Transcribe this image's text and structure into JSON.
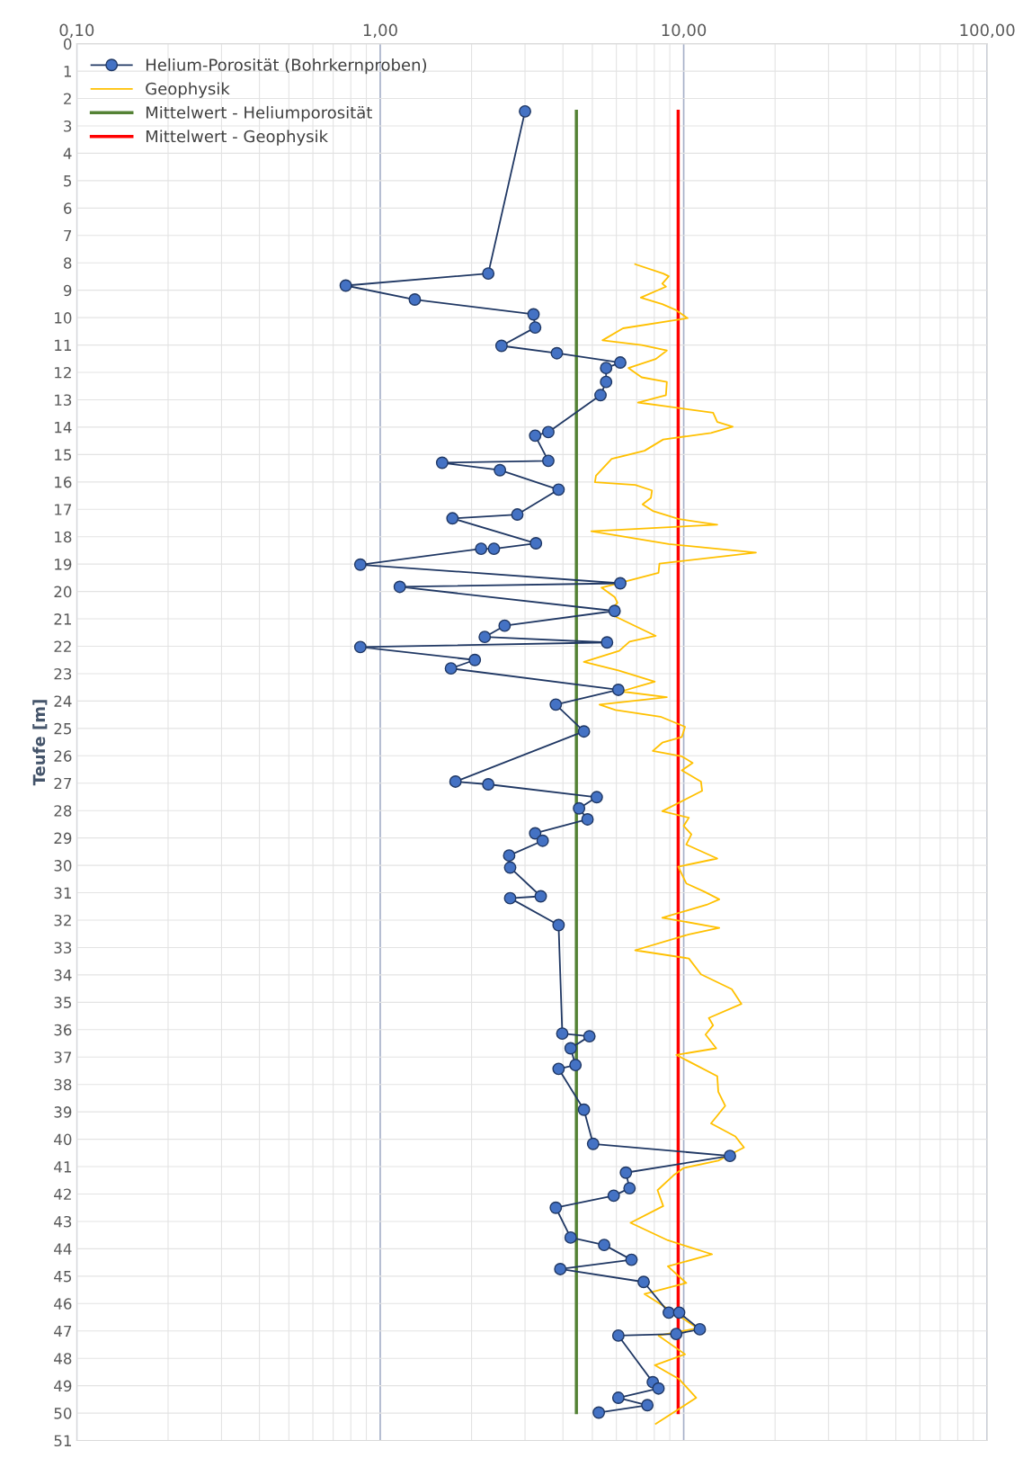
{
  "chart_data": {
    "type": "line",
    "ylabel": "Teufe [m]",
    "log": "x",
    "xlim": [
      0.1,
      100
    ],
    "ylim": [
      51,
      0
    ],
    "xticks": [
      {
        "value": 0.1,
        "label": "0,10"
      },
      {
        "value": 1,
        "label": "1,00"
      },
      {
        "value": 10,
        "label": "10,00"
      },
      {
        "value": 100,
        "label": "100,00"
      }
    ],
    "yticks": [
      0,
      1,
      2,
      3,
      4,
      5,
      6,
      7,
      8,
      9,
      10,
      11,
      12,
      13,
      14,
      15,
      16,
      17,
      18,
      19,
      20,
      21,
      22,
      23,
      24,
      25,
      26,
      27,
      28,
      29,
      30,
      31,
      32,
      33,
      34,
      35,
      36,
      37,
      38,
      39,
      40,
      41,
      42,
      43,
      44,
      45,
      46,
      47,
      48,
      49,
      50,
      51
    ],
    "grid": true,
    "legend": "top left",
    "series": [
      {
        "name": "Helium-Porosität (Bohrkernproben)",
        "color": "#203864",
        "marker": "circle",
        "x": [
          3.0,
          2.27,
          0.77,
          1.3,
          3.2,
          3.24,
          2.51,
          3.82,
          6.18,
          5.55,
          5.55,
          5.32,
          3.58,
          3.24,
          3.58,
          1.6,
          2.48,
          3.87,
          2.83,
          1.73,
          3.26,
          2.37,
          2.15,
          0.86,
          6.18,
          1.16,
          5.92,
          2.57,
          2.21,
          5.59,
          0.86,
          2.05,
          1.71,
          6.09,
          3.79,
          4.69,
          1.77,
          2.27,
          5.17,
          4.52,
          4.82,
          3.24,
          3.43,
          2.66,
          2.68,
          3.38,
          2.68,
          3.87,
          3.98,
          4.89,
          4.24,
          4.4,
          3.87,
          4.69,
          5.03,
          14.2,
          6.45,
          6.63,
          5.88,
          3.79,
          4.24,
          5.47,
          6.73,
          3.92,
          7.38,
          8.93,
          9.66,
          11.3,
          9.45,
          6.09,
          7.91,
          8.26,
          6.09,
          7.59,
          5.25
        ],
        "values": [
          2.47,
          8.39,
          8.83,
          9.34,
          9.88,
          10.36,
          11.03,
          11.3,
          11.64,
          11.84,
          12.35,
          12.83,
          14.18,
          14.31,
          15.23,
          15.3,
          15.57,
          16.28,
          17.19,
          17.33,
          18.24,
          18.44,
          18.44,
          19.02,
          19.7,
          19.83,
          20.71,
          21.25,
          21.66,
          21.86,
          22.03,
          22.5,
          22.81,
          23.59,
          24.13,
          25.11,
          26.94,
          27.04,
          27.51,
          27.92,
          28.32,
          28.83,
          29.1,
          29.64,
          30.08,
          31.13,
          31.2,
          32.18,
          36.14,
          36.24,
          36.68,
          37.29,
          37.43,
          38.92,
          40.17,
          40.61,
          41.22,
          41.79,
          42.06,
          42.5,
          43.59,
          43.86,
          44.4,
          44.74,
          45.21,
          46.33,
          46.33,
          46.94,
          47.11,
          47.17,
          48.87,
          49.1,
          49.44,
          49.71,
          49.98
        ]
      },
      {
        "name": "Geophysik",
        "color": "#ffc000",
        "x": [
          6.92,
          8.56,
          8.93,
          8.5,
          8.74,
          7.22,
          8.5,
          9.38,
          10.3,
          6.31,
          5.4,
          7.27,
          8.8,
          8.09,
          6.58,
          7.27,
          8.8,
          8.74,
          7.07,
          8.61,
          12.5,
          12.9,
          14.5,
          12.3,
          8.56,
          7.43,
          5.79,
          5.14,
          5.1,
          6.92,
          7.86,
          7.8,
          7.32,
          7.91,
          9.66,
          12.9,
          4.96,
          8.93,
          17.3,
          8.32,
          8.26,
          5.36,
          5.92,
          6.05,
          5.75,
          5.79,
          8.09,
          6.63,
          6.13,
          4.69,
          6.09,
          8.03,
          6.22,
          8.8,
          5.28,
          5.96,
          8.38,
          10.1,
          9.86,
          8.5,
          7.91,
          9.86,
          10.7,
          9.86,
          11.4,
          11.5,
          8.5,
          10.4,
          10.0,
          10.6,
          10.2,
          12.9,
          9.59,
          10.2,
          11.7,
          13.1,
          11.9,
          8.5,
          13.1,
          10.4,
          6.92,
          10.4,
          11.4,
          14.4,
          15.5,
          12.1,
          12.5,
          11.8,
          12.8,
          9.45,
          12.9,
          13.0,
          13.7,
          12.3,
          14.8,
          15.8,
          13.0,
          10.0,
          9.25,
          8.2,
          8.56,
          6.68,
          8.87,
          12.4,
          8.87,
          10.2,
          7.43,
          9.51,
          11.1,
          8.26,
          10.1,
          8.03,
          9.66,
          11.0,
          8.09
        ],
        "values": [
          8.05,
          8.39,
          8.49,
          8.76,
          8.87,
          9.27,
          9.51,
          9.71,
          10.02,
          10.39,
          10.83,
          11.0,
          11.2,
          11.51,
          11.84,
          12.18,
          12.35,
          12.83,
          13.1,
          13.23,
          13.47,
          13.81,
          13.98,
          14.21,
          14.45,
          14.86,
          15.16,
          15.77,
          16.01,
          16.11,
          16.31,
          16.58,
          16.82,
          17.06,
          17.36,
          17.56,
          17.8,
          18.27,
          18.58,
          18.98,
          19.32,
          19.86,
          20.2,
          20.41,
          20.68,
          20.85,
          21.62,
          21.83,
          22.17,
          22.57,
          22.88,
          23.29,
          23.65,
          23.86,
          24.13,
          24.33,
          24.57,
          24.94,
          25.31,
          25.52,
          25.82,
          26.02,
          26.26,
          26.53,
          26.94,
          27.28,
          28.02,
          28.26,
          28.56,
          28.87,
          29.24,
          29.75,
          30.05,
          30.66,
          30.96,
          31.24,
          31.44,
          31.91,
          32.28,
          32.52,
          33.1,
          33.4,
          33.98,
          34.52,
          35.06,
          35.57,
          35.84,
          36.18,
          36.68,
          36.92,
          37.7,
          38.27,
          38.78,
          39.42,
          39.9,
          40.3,
          40.78,
          41.05,
          41.32,
          41.86,
          42.44,
          43.05,
          43.69,
          44.2,
          44.64,
          45.25,
          45.65,
          46.4,
          46.9,
          47.17,
          47.85,
          48.25,
          48.76,
          49.44,
          50.39
        ]
      },
      {
        "name": "Mittelwert - Heliumporosität",
        "color": "#548235",
        "x": [
          4.43,
          4.43
        ],
        "values": [
          2.47,
          49.98
        ]
      },
      {
        "name": "Mittelwert - Geophysik",
        "color": "#ff0000",
        "x": [
          9.59,
          9.59
        ],
        "values": [
          2.47,
          49.98
        ]
      }
    ]
  }
}
